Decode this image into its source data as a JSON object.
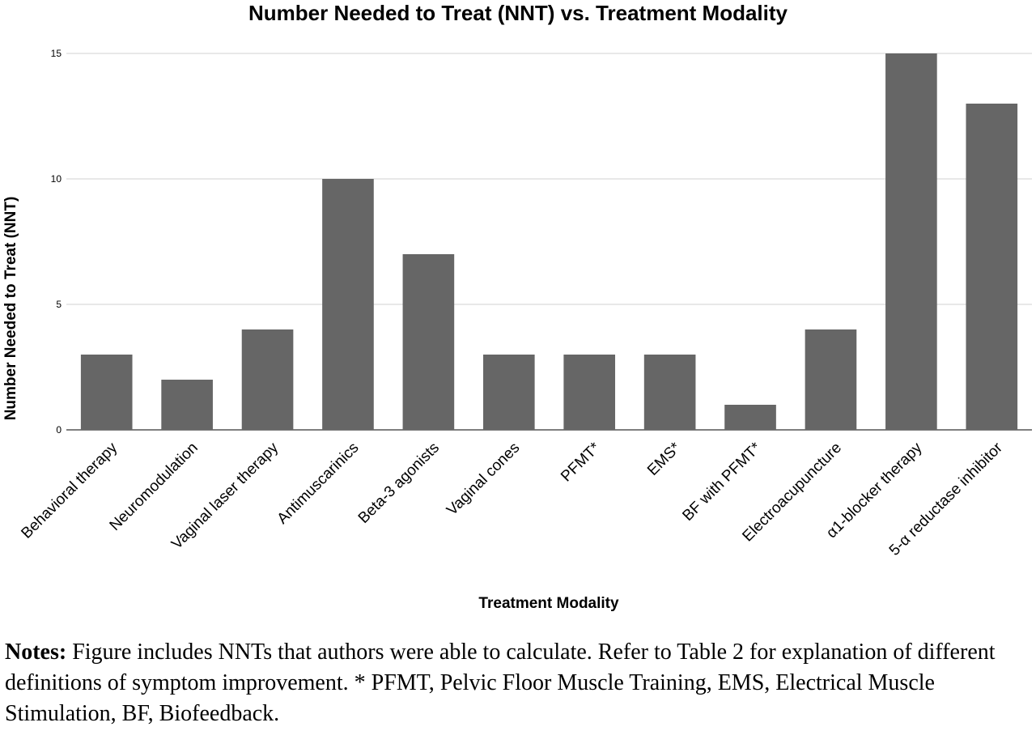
{
  "chart_data": {
    "type": "bar",
    "title": "Number Needed to Treat (NNT) vs. Treatment Modality",
    "xlabel": "Treatment Modality",
    "ylabel": "Number Needed to Treat (NNT)",
    "categories": [
      "Behavioral therapy",
      "Neuromodulation",
      "Vaginal laser therapy",
      "Antimuscarinics",
      "Beta-3 agonists",
      "Vaginal cones",
      "PFMT*",
      "EMS*",
      "BF with PFMT*",
      "Electroacupuncture",
      "α1-blocker therapy",
      "5-α reductase inhibitor"
    ],
    "values": [
      3,
      2,
      4,
      10,
      7,
      3,
      3,
      3,
      1,
      4,
      15,
      13
    ],
    "ylim": [
      0,
      15
    ],
    "yticks": [
      "0",
      "5",
      "10",
      "15"
    ],
    "grid": true,
    "bar_color": "#666666"
  },
  "notes": {
    "label": "Notes:",
    "text": " Figure includes NNTs that authors were able to calculate. Refer to Table 2 for explanation of different definitions of symptom improvement. * PFMT, Pelvic Floor Muscle Training, EMS, Electrical Muscle Stimulation, BF, Biofeedback."
  }
}
